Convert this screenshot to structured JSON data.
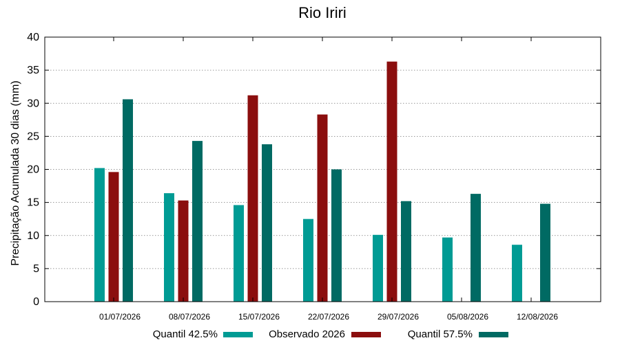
{
  "chart_data": {
    "type": "bar",
    "title": "Rio Iriri",
    "xlabel": "",
    "ylabel": "Precipitação Acumulada 30 dias (mm)",
    "ylim": [
      0,
      40
    ],
    "yticks": [
      0,
      5,
      10,
      15,
      20,
      25,
      30,
      35,
      40
    ],
    "grid": true,
    "legend_position": "bottom",
    "categories": [
      "01/07/2026",
      "08/07/2026",
      "15/07/2026",
      "22/07/2026",
      "29/07/2026",
      "05/08/2026",
      "12/08/2026"
    ],
    "series": [
      {
        "name": "Quantil 42.5%",
        "color": "#009b94",
        "values": [
          20.2,
          16.4,
          14.6,
          12.5,
          10.1,
          9.7,
          8.6
        ]
      },
      {
        "name": "Observado 2026",
        "color": "#8b0e0e",
        "values": [
          19.6,
          15.3,
          31.2,
          28.3,
          36.3,
          null,
          null
        ]
      },
      {
        "name": "Quantil 57.5%",
        "color": "#006a63",
        "values": [
          30.6,
          24.3,
          23.8,
          20.0,
          15.2,
          16.3,
          14.8
        ]
      }
    ]
  }
}
